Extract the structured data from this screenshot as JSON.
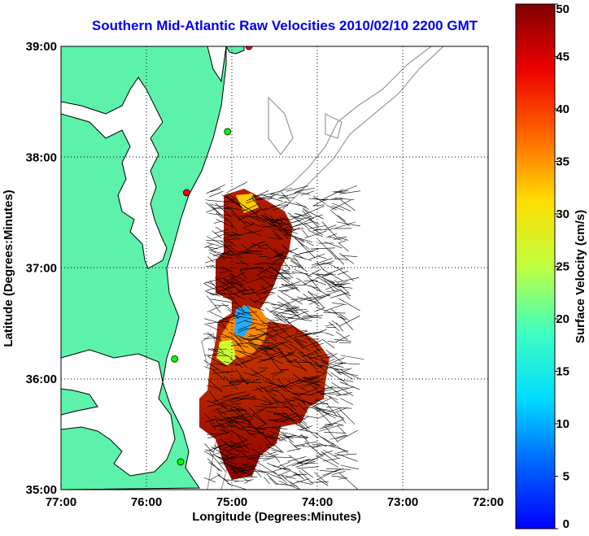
{
  "title": "Southern Mid-Atlantic Raw Velocities 2010/02/10 2200 GMT",
  "xlabel": "Longitude (Degrees:Minutes)",
  "ylabel": "Latitude (Degrees:Minutes)",
  "x_ticks": [
    "77:00",
    "76:00",
    "75:00",
    "74:00",
    "73:00",
    "72:00"
  ],
  "y_ticks": [
    "39:00",
    "38:00",
    "37:00",
    "36:00",
    "35:00"
  ],
  "colorbar": {
    "label": "Surface Velocity (cm/s)",
    "ticks": [
      "50",
      "45",
      "40",
      "35",
      "30",
      "25",
      "20",
      "15",
      "10",
      "5",
      "0"
    ],
    "range": [
      0,
      50
    ],
    "colormap": "jet"
  },
  "colors": {
    "land": "#5cf2aa",
    "coastline": "#000000",
    "bathymetry": "#999999",
    "title": "#0000ee",
    "station_active": "#00ff00",
    "station_inactive": "#ff0000"
  },
  "map": {
    "lon_range": [
      -77,
      -72
    ],
    "lat_range": [
      35,
      39
    ],
    "grid": "dotted",
    "stations": [
      {
        "lon": -74.8,
        "lat": 39.0,
        "status": "inactive"
      },
      {
        "lon": -75.05,
        "lat": 38.23,
        "status": "active"
      },
      {
        "lon": -75.53,
        "lat": 37.68,
        "status": "inactive"
      },
      {
        "lon": -75.67,
        "lat": 36.18,
        "status": "active"
      },
      {
        "lon": -75.6,
        "lat": 35.25,
        "status": "active"
      }
    ]
  }
}
